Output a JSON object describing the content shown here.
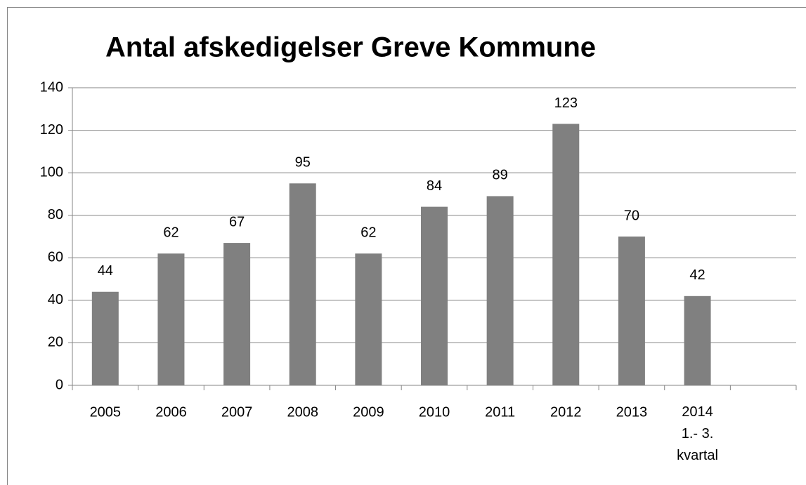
{
  "chart_data": {
    "type": "bar",
    "title": "Antal afskedigelser Greve Kommune",
    "categories": [
      "2005",
      "2006",
      "2007",
      "2008",
      "2009",
      "2010",
      "2011",
      "2012",
      "2013",
      "2014\n1.- 3.\nkvartal",
      null
    ],
    "values": [
      44,
      62,
      67,
      95,
      62,
      84,
      89,
      123,
      70,
      42,
      null
    ],
    "color": "#808080",
    "ylim": [
      0,
      140
    ],
    "yticks": [
      0,
      20,
      40,
      60,
      80,
      100,
      120,
      140
    ],
    "grid": true
  }
}
